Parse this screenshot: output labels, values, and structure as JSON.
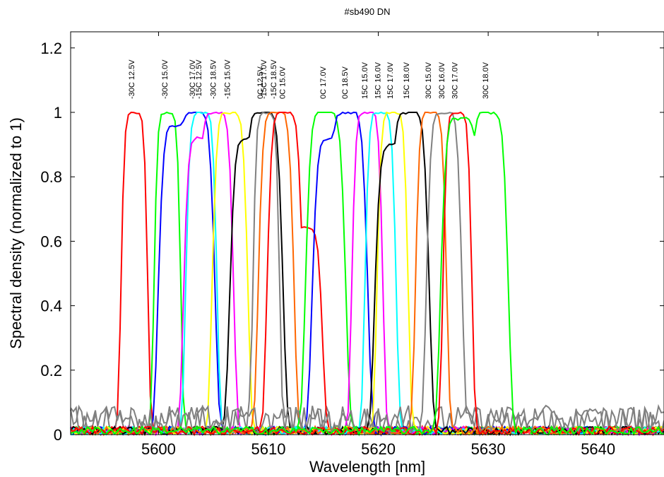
{
  "chart_data": {
    "type": "line",
    "title": "#sb490 DN",
    "xlabel": "Wavelength [nm]",
    "ylabel": "Spectral density (normalized to 1)",
    "xlim": [
      5592,
      5646
    ],
    "ylim": [
      0,
      1.25
    ],
    "xticks": [
      5600,
      5610,
      5620,
      5630,
      5640
    ],
    "xtick_labels": [
      "5600",
      "5610",
      "5620",
      "5630",
      "5640"
    ],
    "yticks": [
      0,
      0.2,
      0.4,
      0.6,
      0.8,
      1,
      1.2
    ],
    "ytick_labels": [
      "0",
      "0.2",
      "0.4",
      "0.6",
      "0.8",
      "1",
      "1.2"
    ],
    "grid": false,
    "series": [
      {
        "name": "-30C 12.5V",
        "color": "#ff0000",
        "peak": 5597.8,
        "width": 1.2,
        "secondary": []
      },
      {
        "name": "-30C 15.0V",
        "color": "#00ff00",
        "peak": 5600.8,
        "width": 1.2,
        "secondary": []
      },
      {
        "name": "-30C 17.0V",
        "color": "#0000ff",
        "peak": 5603.3,
        "width": 1.8,
        "secondary": [
          [
            5601.8,
            0.96
          ]
        ]
      },
      {
        "name": "-15C 12.5V",
        "color": "#00ffff",
        "peak": 5603.9,
        "width": 1.4,
        "secondary": []
      },
      {
        "name": "-30C 18.5V",
        "color": "#ff00ff",
        "peak": 5605.2,
        "width": 1.6,
        "secondary": [
          [
            5603.9,
            0.92
          ]
        ]
      },
      {
        "name": "-15C 15.0V",
        "color": "#ffff00",
        "peak": 5606.5,
        "width": 1.6,
        "secondary": []
      },
      {
        "name": "0C 12.5V",
        "color": "#000000",
        "peak": 5609.5,
        "width": 1.8,
        "secondary": [
          [
            5608.3,
            0.92
          ]
        ]
      },
      {
        "name": "-15C 17.0V",
        "color": "#808080",
        "peak": 5609.8,
        "width": 1.2,
        "secondary": []
      },
      {
        "name": "-15C 18.5V",
        "color": "#ff6600",
        "peak": 5610.7,
        "width": 1.6,
        "secondary": []
      },
      {
        "name": "0C 15.0V",
        "color": "#ff0000",
        "peak": 5611.5,
        "width": 1.6,
        "secondary": [
          [
            5613.3,
            0.64
          ]
        ]
      },
      {
        "name": "0C 17.0V",
        "color": "#00ff00",
        "peak": 5615.2,
        "width": 1.8,
        "secondary": []
      },
      {
        "name": "0C 18.5V",
        "color": "#0000ff",
        "peak": 5617.2,
        "width": 1.8,
        "secondary": [
          [
            5615.8,
            0.92
          ]
        ]
      },
      {
        "name": "15C 15.0V",
        "color": "#ff00ff",
        "peak": 5619.0,
        "width": 1.4,
        "secondary": []
      },
      {
        "name": "15C 16.0V",
        "color": "#00ffff",
        "peak": 5620.2,
        "width": 1.4,
        "secondary": []
      },
      {
        "name": "15C 17.0V",
        "color": "#ffff00",
        "peak": 5621.3,
        "width": 1.4,
        "secondary": []
      },
      {
        "name": "15C 18.0V",
        "color": "#000000",
        "peak": 5622.8,
        "width": 1.8,
        "secondary": [
          [
            5621.5,
            0.9
          ]
        ]
      },
      {
        "name": "30C 15.0V",
        "color": "#ff6600",
        "peak": 5624.8,
        "width": 1.4,
        "secondary": []
      },
      {
        "name": "30C 16.0V",
        "color": "#808080",
        "peak": 5626.0,
        "width": 1.6,
        "secondary": []
      },
      {
        "name": "30C 17.0V",
        "color": "#ff0000",
        "peak": 5627.2,
        "width": 1.3,
        "secondary": []
      },
      {
        "name": "30C 18.0V",
        "color": "#00ff00",
        "peak": 5630.0,
        "width": 1.8,
        "secondary": [
          [
            5627.5,
            0.98
          ]
        ]
      }
    ]
  }
}
